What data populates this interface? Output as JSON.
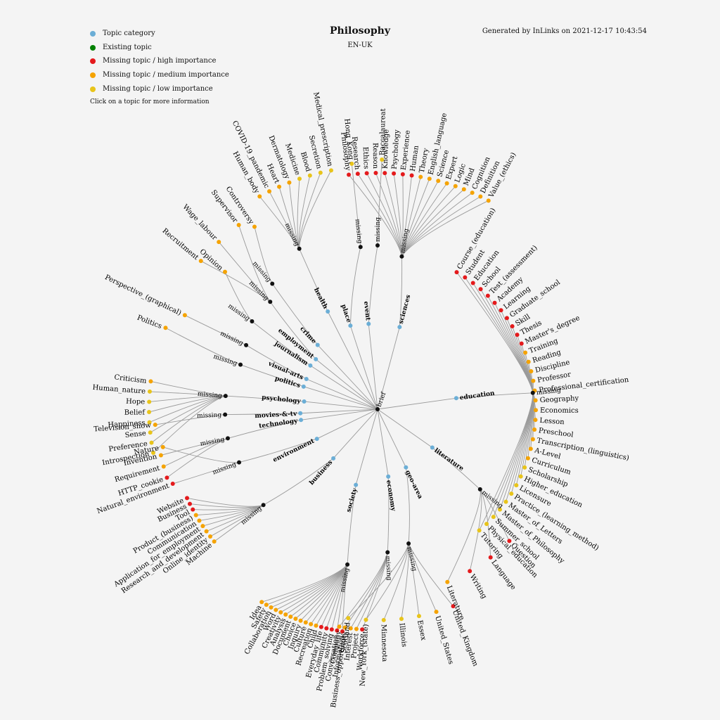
{
  "header": {
    "title": "Philosophy",
    "language": "EN-UK",
    "generated": "Generated by InLinks on 2021-12-17 10:43:54"
  },
  "legend": {
    "items": [
      {
        "label": "Topic category",
        "color": "#6baed6"
      },
      {
        "label": "Existing topic",
        "color": "#008000"
      },
      {
        "label": "Missing topic / high importance",
        "color": "#e41a1c"
      },
      {
        "label": "Missing topic / medium importance",
        "color": "#f5a300"
      },
      {
        "label": "Missing topic / low importance",
        "color": "#e8c41a"
      }
    ],
    "hint": "Click on a topic for more information"
  },
  "colors": {
    "category": "#6baed6",
    "hub": "#111111",
    "high": "#e41a1c",
    "medium": "#f5a300",
    "low": "#e8c41a",
    "link": "#9a9a9a"
  },
  "tree": {
    "root_label": "brief",
    "missing_label": "missing",
    "categories": [
      {
        "name": "sciences",
        "hub": "missing",
        "leaves": [
          [
            "Philosophy",
            "high"
          ],
          [
            "Research",
            "high"
          ],
          [
            "Ethics",
            "high"
          ],
          [
            "Reason",
            "high"
          ],
          [
            "Knowledge",
            "high"
          ],
          [
            "Psychology",
            "high"
          ],
          [
            "Experience",
            "high"
          ],
          [
            "Human",
            "high"
          ],
          [
            "Theory",
            "medium"
          ],
          [
            "English_language",
            "medium"
          ],
          [
            "Science",
            "medium"
          ],
          [
            "Expert",
            "medium"
          ],
          [
            "Logic",
            "medium"
          ],
          [
            "Mind",
            "medium"
          ],
          [
            "Cognition",
            "medium"
          ],
          [
            "Definition",
            "medium"
          ],
          [
            "Value_(ethics)",
            "medium"
          ]
        ]
      },
      {
        "name": "education",
        "hub": "missing",
        "leaves": [
          [
            "Course_(education)",
            "high"
          ],
          [
            "Student",
            "high"
          ],
          [
            "Education",
            "high"
          ],
          [
            "School",
            "high"
          ],
          [
            "Test_(assessment)",
            "high"
          ],
          [
            "Academy",
            "high"
          ],
          [
            "Learning",
            "high"
          ],
          [
            "Graduate_school",
            "high"
          ],
          [
            "Skill",
            "high"
          ],
          [
            "Thesis",
            "high"
          ],
          [
            "Master's_degree",
            "high"
          ],
          [
            "Training",
            "medium"
          ],
          [
            "Reading",
            "medium"
          ],
          [
            "Discipline",
            "medium"
          ],
          [
            "Professor",
            "medium"
          ],
          [
            "Professional_certification",
            "medium"
          ],
          [
            "Geography",
            "medium"
          ],
          [
            "Economics",
            "medium"
          ],
          [
            "Lesson",
            "medium"
          ],
          [
            "Preschool",
            "medium"
          ],
          [
            "Transcription_(linguistics)",
            "medium"
          ],
          [
            "A-Level",
            "medium"
          ],
          [
            "Curriculum",
            "medium"
          ],
          [
            "Scholarship",
            "low"
          ],
          [
            "Higher_education",
            "low"
          ],
          [
            "Licensure",
            "low"
          ],
          [
            "Practice_(learning_method)",
            "low"
          ],
          [
            "Master_of_Letters",
            "low"
          ],
          [
            "Master_of_Philosophy",
            "low"
          ],
          [
            "Summer_school",
            "low"
          ],
          [
            "Physical_education",
            "low"
          ],
          [
            "Tutoring",
            "low"
          ]
        ]
      },
      {
        "name": "literature",
        "hub": "missing",
        "leaves": [
          [
            "Question",
            "high"
          ],
          [
            "Language",
            "high"
          ],
          [
            "Writing",
            "high"
          ],
          [
            "Literature",
            "medium"
          ]
        ]
      },
      {
        "name": "geo-area",
        "hub": "missing",
        "leaves": [
          [
            "United_Kingdom",
            "high"
          ],
          [
            "United_States",
            "medium"
          ],
          [
            "Essex",
            "low"
          ],
          [
            "Illinois",
            "low"
          ],
          [
            "Minnesota",
            "low"
          ],
          [
            "New_York_(state)",
            "low"
          ],
          [
            "Scotland",
            "low"
          ]
        ]
      },
      {
        "name": "economy",
        "hub": "missing",
        "leaves": [
          [
            "Workforce",
            "high"
          ],
          [
            "Project",
            "medium"
          ],
          [
            "Interest",
            "medium"
          ],
          [
            "Business_opportunity",
            "medium"
          ],
          [
            "Company",
            "medium"
          ]
        ]
      },
      {
        "name": "society",
        "hub": "missing",
        "leaves": [
          [
            "Information",
            "high"
          ],
          [
            "Conversation",
            "high"
          ],
          [
            "Problem_solving",
            "high"
          ],
          [
            "Community",
            "high"
          ],
          [
            "Everyday_life",
            "high"
          ],
          [
            "Child",
            "medium"
          ],
          [
            "Recreation",
            "medium"
          ],
          [
            "Culture",
            "medium"
          ],
          [
            "Inquiry",
            "medium"
          ],
          [
            "Choice",
            "medium"
          ],
          [
            "Document",
            "medium"
          ],
          [
            "Analysis",
            "medium"
          ],
          [
            "Creativity",
            "medium"
          ],
          [
            "Word",
            "medium"
          ],
          [
            "Collaboration",
            "medium"
          ],
          [
            "Safety",
            "medium"
          ],
          [
            "Idea",
            "medium"
          ]
        ]
      },
      {
        "name": "business",
        "hub": "missing",
        "leaves": [
          [
            "Website",
            "high"
          ],
          [
            "Business",
            "high"
          ],
          [
            "Tool",
            "high"
          ],
          [
            "Product_(business)",
            "medium"
          ],
          [
            "Communication",
            "medium"
          ],
          [
            "Application_for_employment",
            "medium"
          ],
          [
            "Research_and_development",
            "medium"
          ],
          [
            "Online_identity",
            "medium"
          ],
          [
            "Machine",
            "medium"
          ]
        ]
      },
      {
        "name": "environment",
        "hub": "missing",
        "leaves": [
          [
            "Natural_environment",
            "high"
          ],
          [
            "Nature",
            "medium"
          ]
        ]
      },
      {
        "name": "technology",
        "hub": "missing",
        "leaves": [
          [
            "HTTP_cookie",
            "high"
          ],
          [
            "Requirement",
            "medium"
          ],
          [
            "Invention",
            "medium"
          ]
        ]
      },
      {
        "name": "movies-&-tv",
        "hub": "missing",
        "leaves": [
          [
            "Television_show",
            "medium"
          ]
        ]
      },
      {
        "name": "psychology",
        "hub": "missing",
        "leaves": [
          [
            "Criticism",
            "medium"
          ],
          [
            "Human_nature",
            "low"
          ],
          [
            "Hope",
            "low"
          ],
          [
            "Belief",
            "low"
          ],
          [
            "Happiness",
            "low"
          ],
          [
            "Sense",
            "low"
          ],
          [
            "Preference",
            "low"
          ],
          [
            "Introspection",
            "low"
          ]
        ]
      },
      {
        "name": "politics",
        "hub": "missing",
        "leaves": [
          [
            "Politics",
            "medium"
          ]
        ]
      },
      {
        "name": "visual-arts",
        "hub": "missing",
        "leaves": [
          [
            "Perspective_(graphical)",
            "medium"
          ]
        ]
      },
      {
        "name": "journalism",
        "hub": "missing",
        "leaves": [
          [
            "Opinion",
            "medium"
          ]
        ]
      },
      {
        "name": "employment",
        "hub": "missing",
        "leaves": [
          [
            "Recruitment",
            "medium"
          ],
          [
            "Wage_labour",
            "medium"
          ],
          [
            "Supervisor",
            "medium"
          ]
        ]
      },
      {
        "name": "crime",
        "hub": "missing",
        "leaves": [
          [
            "Controversy",
            "medium"
          ]
        ]
      },
      {
        "name": "health",
        "hub": "missing",
        "leaves": [
          [
            "Human_body",
            "medium"
          ],
          [
            "COVID-19_pandemic",
            "medium"
          ],
          [
            "Heart",
            "medium"
          ],
          [
            "Dermatology",
            "medium"
          ],
          [
            "Medicine",
            "low"
          ],
          [
            "Blood",
            "low"
          ],
          [
            "Secretion",
            "low"
          ],
          [
            "Medical_prescription",
            "low"
          ]
        ]
      },
      {
        "name": "place",
        "hub": "missing",
        "leaves": [
          [
            "Hong_Kong",
            "low"
          ]
        ]
      },
      {
        "name": "event",
        "hub": "missing",
        "leaves": [
          [
            "Baccalaureat",
            "low"
          ]
        ]
      }
    ]
  }
}
